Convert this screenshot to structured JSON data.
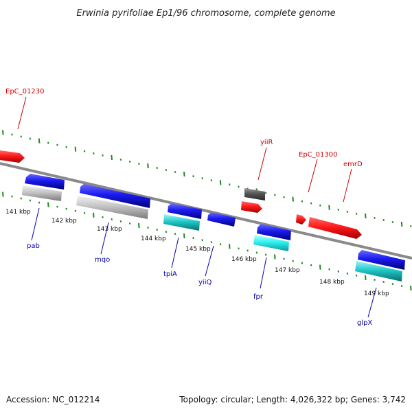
{
  "title": "Erwinia pyrifoliae Ep1/96 chromosome, complete genome",
  "footer": {
    "accession": "Accession: NC_012214",
    "summary": "Topology: circular; Length: 4,026,322 bp; Genes: 3,742"
  },
  "colors": {
    "backbone": "#8a8a8a",
    "tick": "#1f8a1f",
    "forward_gene": "#ff1a1a",
    "reverse_gene": "#1a1aee",
    "rna": "#bdbdbd",
    "cyan": "#1ec8c8",
    "dark_gray": "#555555",
    "label_red": "#cc0000",
    "label_blue": "#0000aa"
  },
  "scale_labels": [
    "141 kbp",
    "142 kbp",
    "143 kbp",
    "144 kbp",
    "145 kbp",
    "146 kbp",
    "147 kbp",
    "148 kbp",
    "149 kbp"
  ],
  "gene_labels_top": [
    {
      "name": "EpC_01230",
      "color": "label_red"
    },
    {
      "name": "yiiR",
      "color": "label_red"
    },
    {
      "name": "EpC_01300",
      "color": "label_red"
    },
    {
      "name": "emrD",
      "color": "label_red"
    }
  ],
  "gene_labels_bottom": [
    {
      "name": "pab",
      "color": "label_blue"
    },
    {
      "name": "mqo",
      "color": "label_blue"
    },
    {
      "name": "tpiA",
      "color": "label_blue"
    },
    {
      "name": "yiiQ",
      "color": "label_blue"
    },
    {
      "name": "fpr",
      "color": "label_blue"
    },
    {
      "name": "glpX",
      "color": "label_blue"
    }
  ]
}
